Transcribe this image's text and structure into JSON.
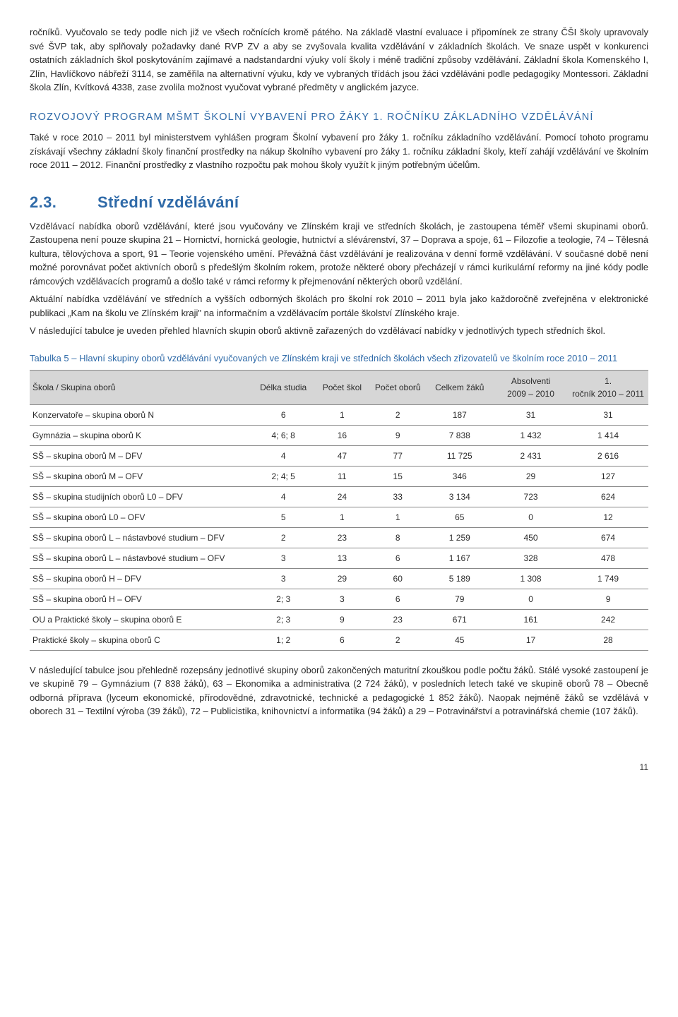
{
  "para1": "ročníků. Vyučovalo se tedy podle nich již ve všech ročnících kromě pátého. Na základě vlastní evaluace i připomínek ze strany ČŠI školy upravovaly své ŠVP tak, aby splňovaly požadavky dané RVP ZV a aby se zvyšovala kvalita vzdělávání v základních školách. Ve snaze uspět v konkurenci ostatních základních škol poskytováním zajímavé a nadstandardní výuky volí školy i méně tradiční způsoby vzdělávání. Základní škola Komenského I, Zlín, Havlíčkovo nábřeží 3114, se zaměřila na alternativní výuku, kdy ve vybraných třídách jsou žáci vzděláváni podle pedagogiky Montessori. Základní škola Zlín, Kvítková 4338, zase zvolila možnost vyučovat vybrané předměty v anglickém jazyce.",
  "sub1_title": "ROZVOJOVÝ PROGRAM MŠMT ŠKOLNÍ VYBAVENÍ PRO ŽÁKY 1. ROČNÍKU ZÁKLADNÍHO VZDĚLÁVÁNÍ",
  "para2": "Také v roce 2010 – 2011 byl ministerstvem vyhlášen program Školní vybavení pro žáky 1. ročníku základního vzdělávání. Pomocí tohoto programu získávají všechny základní školy finanční prostředky na nákup školního vybavení pro žáky 1. ročníku základní školy, kteří zahájí vzdělávání ve školním roce 2011 – 2012. Finanční prostředky z vlastního rozpočtu pak mohou školy využít k jiným potřebným účelům.",
  "main_num": "2.3.",
  "main_title": "Střední vzdělávání",
  "para3": "Vzdělávací nabídka oborů vzdělávání, které jsou vyučovány ve Zlínském kraji ve středních školách, je zastoupena téměř všemi skupinami oborů. Zastoupena není pouze skupina 21 – Hornictví, hornická geologie, hutnictví a slévárenství, 37 – Doprava a spoje, 61 – Filozofie a teologie, 74 – Tělesná kultura, tělovýchova a sport, 91 – Teorie vojenského umění. Převážná část vzdělávání je realizována v denní formě vzdělávání. V současné době není možné porovnávat počet aktivních oborů s předešlým školním rokem, protože některé obory přecházejí v rámci kurikulární reformy na jiné kódy podle rámcových vzdělávacích programů a došlo také v rámci reformy k přejmenování některých oborů vzdělání.",
  "para4": "Aktuální nabídka vzdělávání ve středních a vyšších odborných školách pro školní rok 2010 – 2011 byla jako každoročně zveřejněna v elektronické publikaci „Kam na školu ve Zlínském kraji\" na informačním a  vzdělávacím portále školství Zlínského kraje.",
  "para5": "V následující tabulce je uveden přehled hlavních skupin oborů aktivně zařazených do vzdělávací nabídky v jednotlivých typech středních škol.",
  "table_caption": "Tabulka 5 – Hlavní skupiny oborů vzdělávání vyučovaných ve Zlínském kraji ve středních školách všech zřizovatelů ve školním roce 2010 – 2011",
  "table": {
    "columns": [
      "Škola / Skupina oborů",
      "Délka studia",
      "Počet škol",
      "Počet oborů",
      "Celkem žáků",
      "Absolventi 2009 – 2010",
      "1. ročník 2010 – 2011"
    ],
    "col_widths": [
      "36%",
      "10%",
      "9%",
      "9%",
      "11%",
      "12%",
      "13%"
    ],
    "rows": [
      [
        "Konzervatoře – skupina oborů N",
        "6",
        "1",
        "2",
        "187",
        "31",
        "31"
      ],
      [
        "Gymnázia – skupina oborů K",
        "4; 6; 8",
        "16",
        "9",
        "7 838",
        "1 432",
        "1 414"
      ],
      [
        "SŠ – skupina oborů M – DFV",
        "4",
        "47",
        "77",
        "11 725",
        "2 431",
        "2 616"
      ],
      [
        "SŠ – skupina oborů M – OFV",
        "2; 4; 5",
        "11",
        "15",
        "346",
        "29",
        "127"
      ],
      [
        "SŠ – skupina studijních oborů L0 – DFV",
        "4",
        "24",
        "33",
        "3 134",
        "723",
        "624"
      ],
      [
        "SŠ – skupina oborů L0 – OFV",
        "5",
        "1",
        "1",
        "65",
        "0",
        "12"
      ],
      [
        "SŠ – skupina oborů L – nástavbové studium – DFV",
        "2",
        "23",
        "8",
        "1 259",
        "450",
        "674"
      ],
      [
        "SŠ – skupina oborů L – nástavbové studium – OFV",
        "3",
        "13",
        "6",
        "1 167",
        "328",
        "478"
      ],
      [
        "SŠ – skupina oborů H – DFV",
        "3",
        "29",
        "60",
        "5 189",
        "1 308",
        "1 749"
      ],
      [
        "SŠ – skupina oborů H – OFV",
        "2; 3",
        "3",
        "6",
        "79",
        "0",
        "9"
      ],
      [
        "OU a Praktické školy – skupina oborů E",
        "2; 3",
        "9",
        "23",
        "671",
        "161",
        "242"
      ],
      [
        "Praktické školy – skupina oborů C",
        "1; 2",
        "6",
        "2",
        "45",
        "17",
        "28"
      ]
    ]
  },
  "para6": "V následující tabulce jsou přehledně rozepsány jednotlivé skupiny oborů zakončených maturitní zkouškou podle počtu žáků. Stálé vysoké zastoupení je ve skupině 79 – Gymnázium (7 838 žáků), 63 – Ekonomika a administrativa (2 724 žáků), v posledních letech také ve skupině oborů 78 – Obecně odborná příprava (lyceum ekonomické, přírodovědné, zdravotnické, technické a pedagogické 1 852 žáků). Naopak nejméně žáků se vzdělává v oborech 31 – Textilní výroba (39 žáků), 72 – Publicistika, knihovnictví a informatika (94 žáků) a 29 – Potravinářství a potravinářská chemie (107 žáků).",
  "page_number": "11",
  "colors": {
    "heading": "#2f6aa8",
    "text": "#2b2b2b",
    "table_header_bg": "#d6d6d6",
    "border": "#888888"
  }
}
